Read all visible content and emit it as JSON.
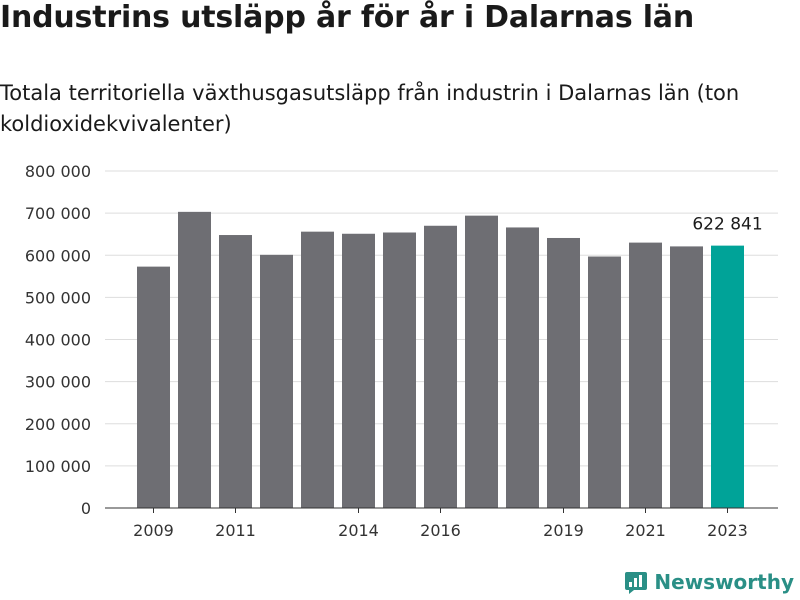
{
  "header": {
    "title": "Industrins utsläpp år för år i Dalarnas län",
    "subtitle": "Totala territoriella växthusgasutsläpp från industrin i Dalarnas län (ton koldioxidekvivalenter)"
  },
  "brand": {
    "name": "Newsworthy",
    "color": "#2a8f86",
    "icon": "bar-chart-logo-icon"
  },
  "colors": {
    "bar": "#6e6e73",
    "highlight": "#00a398",
    "grid": "#dddddd"
  },
  "chart_data": {
    "type": "bar",
    "x": [
      2009,
      2010,
      2011,
      2012,
      2013,
      2014,
      2015,
      2016,
      2017,
      2018,
      2019,
      2020,
      2021,
      2022,
      2023
    ],
    "values": [
      573000,
      703000,
      648000,
      601000,
      656000,
      651000,
      654000,
      670000,
      694000,
      666000,
      641000,
      597000,
      630000,
      621000,
      622841
    ],
    "highlight_index": 14,
    "highlight_label": "622 841",
    "xtick_labels": [
      "2009",
      "2011",
      "2014",
      "2016",
      "2019",
      "2021",
      "2023"
    ],
    "ytick_labels": [
      "0",
      "100 000",
      "200 000",
      "300 000",
      "400 000",
      "500 000",
      "600 000",
      "700 000",
      "800 000"
    ],
    "ylim": [
      0,
      800000
    ],
    "grid": true,
    "legend": "none"
  }
}
